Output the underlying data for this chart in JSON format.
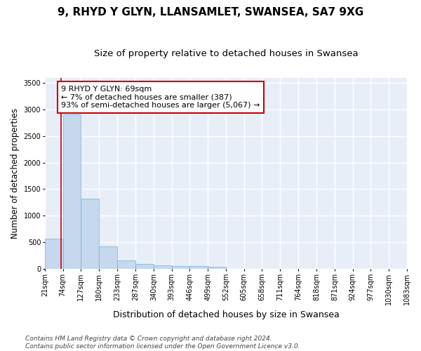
{
  "title": "9, RHYD Y GLYN, LLANSAMLET, SWANSEA, SA7 9XG",
  "subtitle": "Size of property relative to detached houses in Swansea",
  "xlabel": "Distribution of detached houses by size in Swansea",
  "ylabel": "Number of detached properties",
  "bar_color": "#c5d8ee",
  "bar_edge_color": "#7aadd4",
  "highlight_color": "#cc0000",
  "annotation_text": "9 RHYD Y GLYN: 69sqm\n← 7% of detached houses are smaller (387)\n93% of semi-detached houses are larger (5,067) →",
  "annotation_box_color": "#ffffff",
  "annotation_edge_color": "#cc0000",
  "property_size_sqm": 69,
  "bin_edges": [
    21,
    74,
    127,
    180,
    233,
    287,
    340,
    393,
    446,
    499,
    552,
    605,
    658,
    711,
    764,
    818,
    871,
    924,
    977,
    1030,
    1083
  ],
  "bar_heights": [
    570,
    2910,
    1320,
    415,
    155,
    85,
    60,
    55,
    45,
    40,
    0,
    0,
    0,
    0,
    0,
    0,
    0,
    0,
    0,
    0
  ],
  "ylim": [
    0,
    3600
  ],
  "yticks": [
    0,
    500,
    1000,
    1500,
    2000,
    2500,
    3000,
    3500
  ],
  "background_color": "#e8eef8",
  "grid_color": "#ffffff",
  "fig_background_color": "#ffffff",
  "footer_text": "Contains HM Land Registry data © Crown copyright and database right 2024.\nContains public sector information licensed under the Open Government Licence v3.0.",
  "title_fontsize": 11,
  "subtitle_fontsize": 9.5,
  "xlabel_fontsize": 9,
  "ylabel_fontsize": 8.5,
  "tick_fontsize": 7,
  "footer_fontsize": 6.5,
  "annot_fontsize": 8
}
